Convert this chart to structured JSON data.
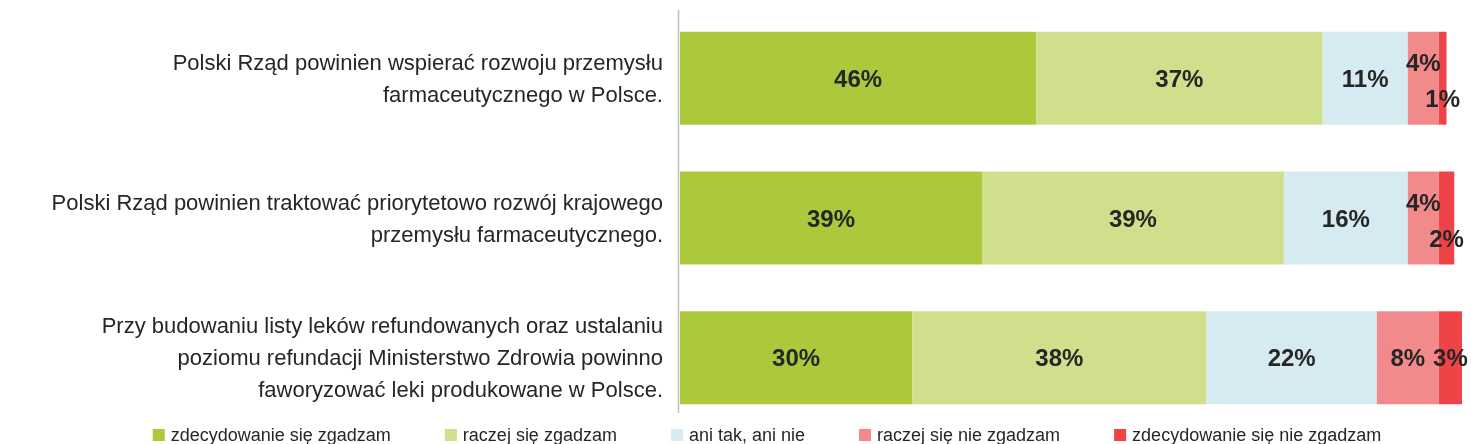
{
  "chart_data": {
    "type": "bar",
    "orientation": "horizontal",
    "stacked": true,
    "tick_labels": "y",
    "legend": "bottom",
    "categories": [
      "Polski Rząd powinien wspierać rozwoju przemysłu\nfarmaceutycznego w Polsce.",
      "Polski Rząd powinien traktować priorytetowo rozwój krajowego\nprzemysłu farmaceutycznego.",
      "Przy budowaniu listy leków refundowanych oraz ustalaniu\npoziomu refundacji Ministerstwo Zdrowia powinno\nfaworyzować leki produkowane w Polsce."
    ],
    "series": [
      {
        "name": "zdecydowanie się zgadzam",
        "color": "#acc93b",
        "values": [
          46,
          39,
          30
        ],
        "value_labels": [
          "46%",
          "39%",
          "30%"
        ]
      },
      {
        "name": "raczej się zgadzam",
        "color": "#cfdf8b",
        "values": [
          37,
          39,
          38
        ],
        "value_labels": [
          "37%",
          "39%",
          "38%"
        ]
      },
      {
        "name": "ani tak, ani nie",
        "color": "#d5ebf1",
        "values": [
          11,
          16,
          22
        ],
        "value_labels": [
          "11%",
          "16%",
          "22%"
        ]
      },
      {
        "name": "raczej się nie zgadzam",
        "color": "#f2898a",
        "values": [
          4,
          4,
          8
        ],
        "value_labels": [
          "4%",
          "4%",
          "8%"
        ]
      },
      {
        "name": "zdecydowanie się nie zgadzam",
        "color": "#ee4447",
        "values": [
          1,
          2,
          3
        ],
        "value_labels": [
          "1%",
          "2%",
          "3%"
        ]
      }
    ]
  }
}
